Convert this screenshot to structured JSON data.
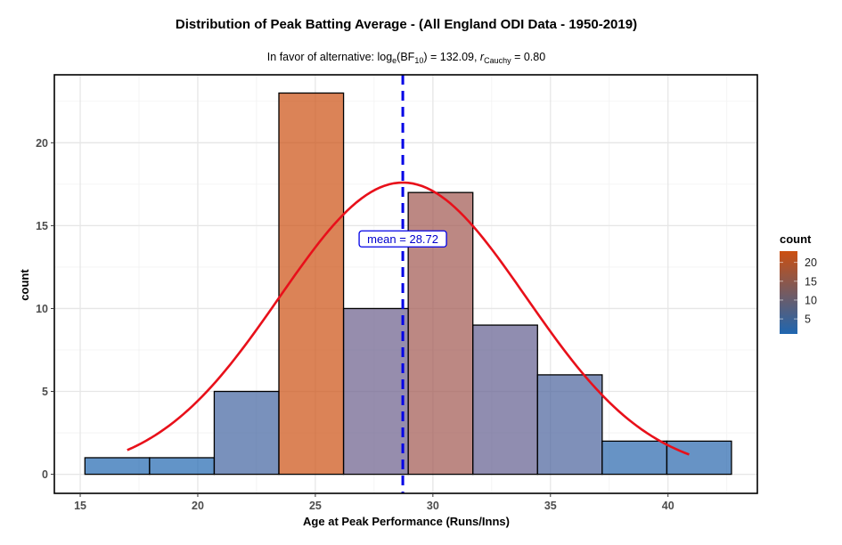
{
  "chart_data": {
    "type": "bar",
    "subtype": "histogram",
    "title": "Distribution of Peak Batting Average - (All England ODI Data - 1950-2019)",
    "subtitle": {
      "prefix": "In favor of alternative: log",
      "log_sub": "e",
      "bf": "(BF",
      "bf_sub": "10",
      "bf_close": ") = 132.09, ",
      "r": "r",
      "r_sub": "Cauchy",
      "r_value": " = 0.80"
    },
    "xlabel": "Age at Peak Performance (Runs/Inns)",
    "ylabel": "count",
    "xlim": [
      13.9,
      43.8
    ],
    "ylim": [
      -1.15,
      24.1
    ],
    "x_ticks": [
      15,
      20,
      25,
      30,
      35,
      40
    ],
    "x_tick_labels": [
      "15",
      "20",
      "25",
      "30",
      "35",
      "40"
    ],
    "y_ticks": [
      0,
      5,
      10,
      15,
      20
    ],
    "y_tick_labels": [
      "0",
      "5",
      "10",
      "15",
      "20"
    ],
    "grid": true,
    "bins": [
      {
        "x0": 15.2,
        "x1": 17.95,
        "count": 1
      },
      {
        "x0": 17.95,
        "x1": 20.7,
        "count": 1
      },
      {
        "x0": 20.7,
        "x1": 23.45,
        "count": 5
      },
      {
        "x0": 23.45,
        "x1": 26.2,
        "count": 23
      },
      {
        "x0": 26.2,
        "x1": 28.95,
        "count": 10
      },
      {
        "x0": 28.95,
        "x1": 31.7,
        "count": 17
      },
      {
        "x0": 31.7,
        "x1": 34.45,
        "count": 9
      },
      {
        "x0": 34.45,
        "x1": 37.2,
        "count": 6
      },
      {
        "x0": 37.2,
        "x1": 39.95,
        "count": 2
      },
      {
        "x0": 39.95,
        "x1": 42.7,
        "count": 2
      }
    ],
    "normal_curve": {
      "mean": 28.72,
      "sd": 5.25,
      "peak_count": 17.6,
      "x_range": [
        17.0,
        40.9
      ],
      "color": "#e8101a"
    },
    "mean_line": {
      "value": 28.72,
      "label": "mean = 28.72",
      "color": "#0000e6"
    },
    "legend": {
      "title": "count",
      "type": "colorbar",
      "placement": "right",
      "range": [
        1,
        23
      ],
      "breaks": [
        5,
        10,
        15,
        20
      ],
      "break_labels": [
        "5",
        "10",
        "15",
        "20"
      ],
      "low_color": "#1f66b0",
      "high_color": "#cc4f10"
    },
    "bar_alpha": 0.7,
    "bar_outline": "#000000"
  }
}
